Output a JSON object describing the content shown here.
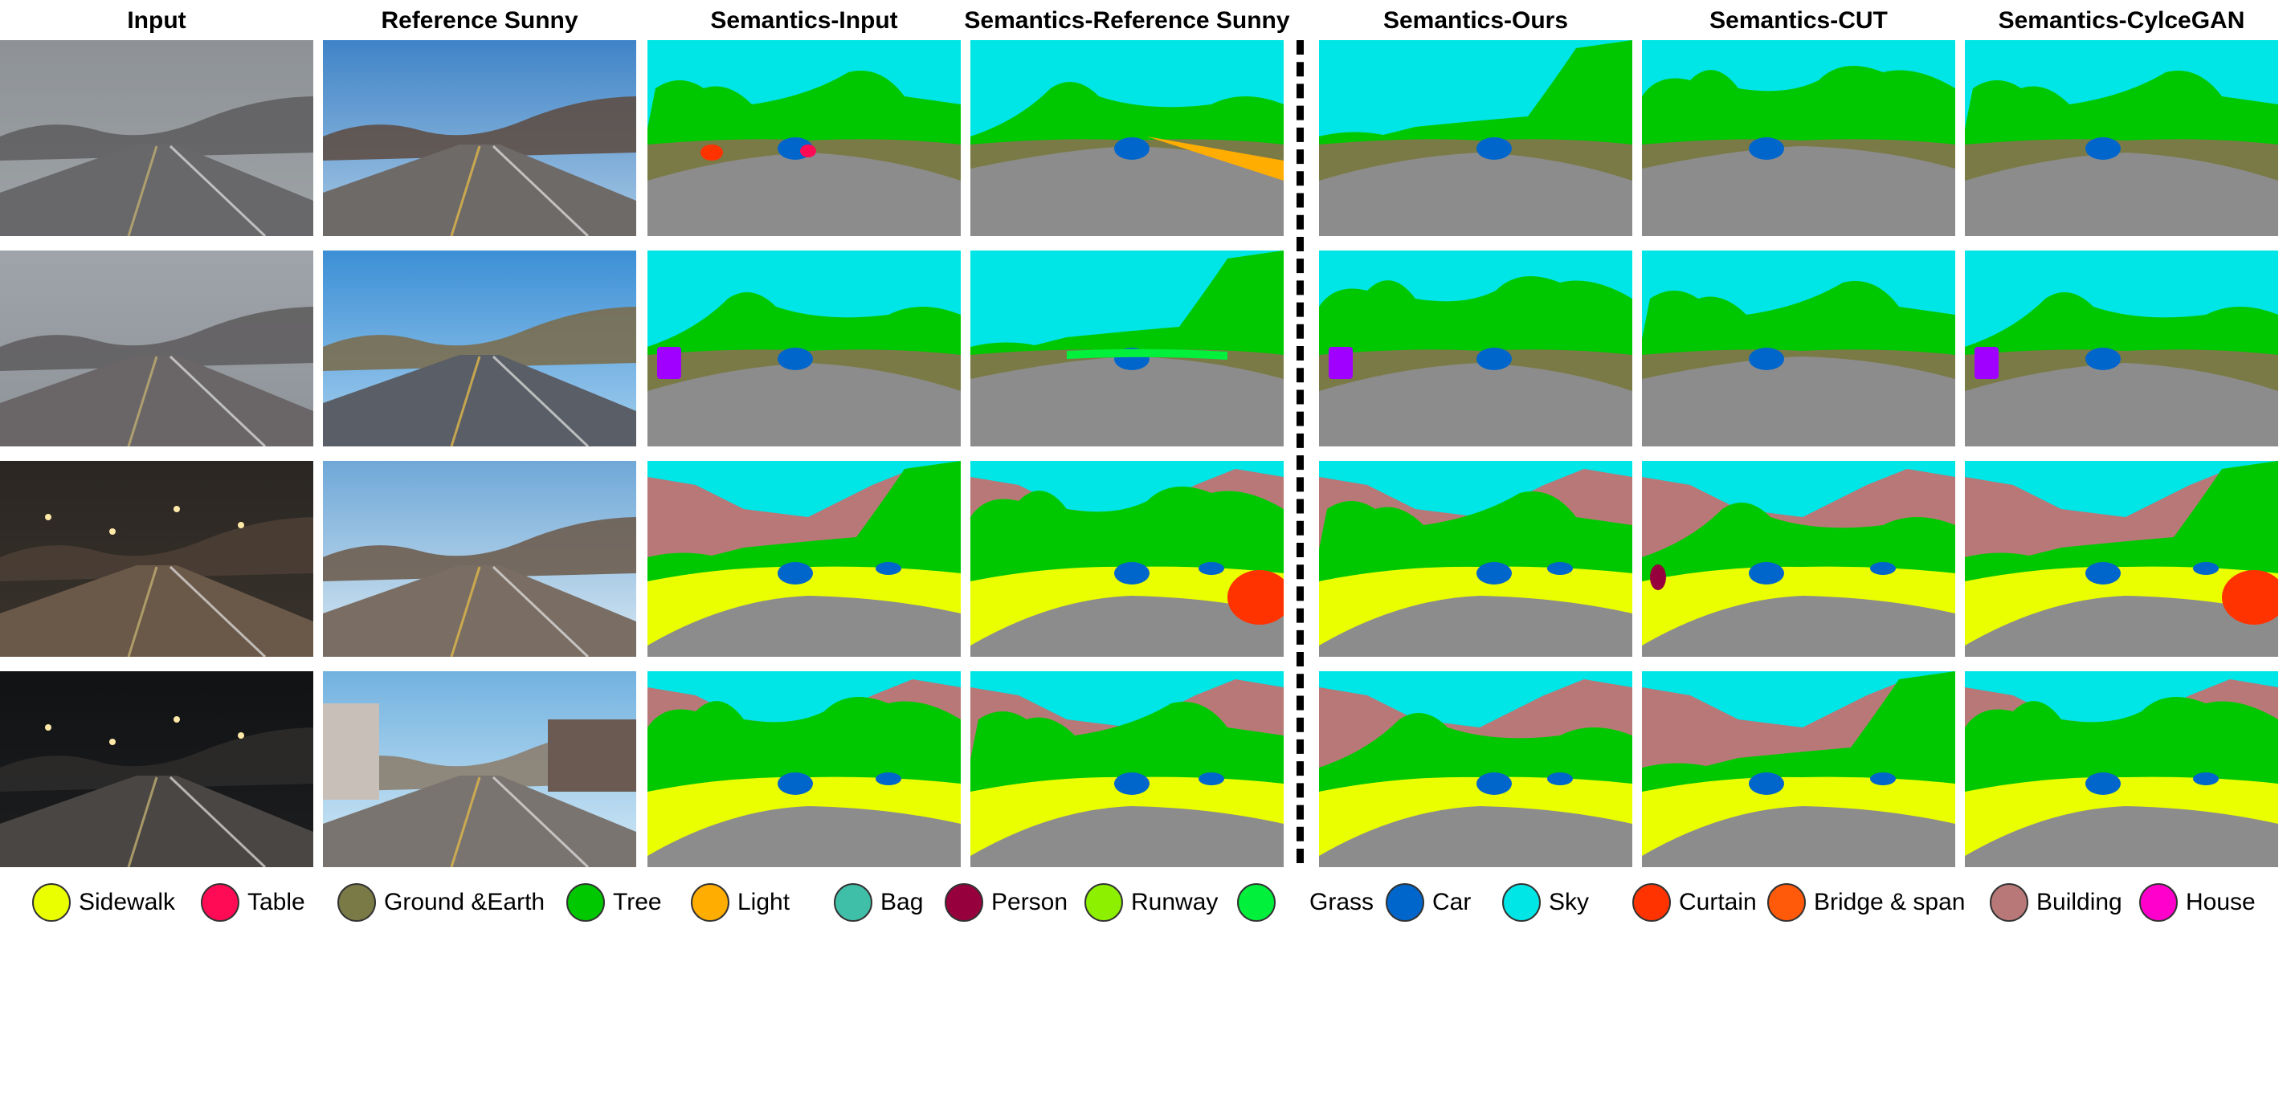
{
  "headers": [
    "Input",
    "Reference Sunny",
    "Semantics-Input",
    "Semantics-Reference Sunny",
    "Semantics-Ours",
    "Semantics-CUT",
    "Semantics-CylceGAN"
  ],
  "legend": [
    {
      "label": "Sidewalk",
      "color": "#eaff00"
    },
    {
      "label": "Table",
      "color": "#ff0a54"
    },
    {
      "label": "Ground &Earth",
      "color": "#7a7a47"
    },
    {
      "label": "Tree",
      "color": "#00c800"
    },
    {
      "label": "Light",
      "color": "#ffad00"
    },
    {
      "label": "Bag",
      "color": "#3fbfa8"
    },
    {
      "label": "Person",
      "color": "#96003c"
    },
    {
      "label": "Runway",
      "color": "#8cf000"
    },
    {
      "label": "Grass",
      "color": "#00f03c"
    },
    {
      "label": "Car",
      "color": "#0066cc"
    },
    {
      "label": "Sky",
      "color": "#00e5e5"
    },
    {
      "label": "Curtain",
      "color": "#ff3300"
    },
    {
      "label": "Bridge & span",
      "color": "#ff5a0a"
    },
    {
      "label": "Building",
      "color": "#b87878"
    },
    {
      "label": "House",
      "color": "#ff00cc"
    }
  ],
  "colors": {
    "sky": "#00e5e5",
    "tree": "#00c800",
    "ground": "#7a7a47",
    "road": "#8c8c8c",
    "sidewalk": "#eaff00",
    "building": "#b87878",
    "car": "#0066cc",
    "curtain": "#ff3300",
    "light": "#ffad00",
    "grass": "#00f03c",
    "person": "#96003c",
    "table": "#ff0a54",
    "house": "#ff00cc",
    "runway": "#8cf000",
    "purple": "#a000ff"
  }
}
